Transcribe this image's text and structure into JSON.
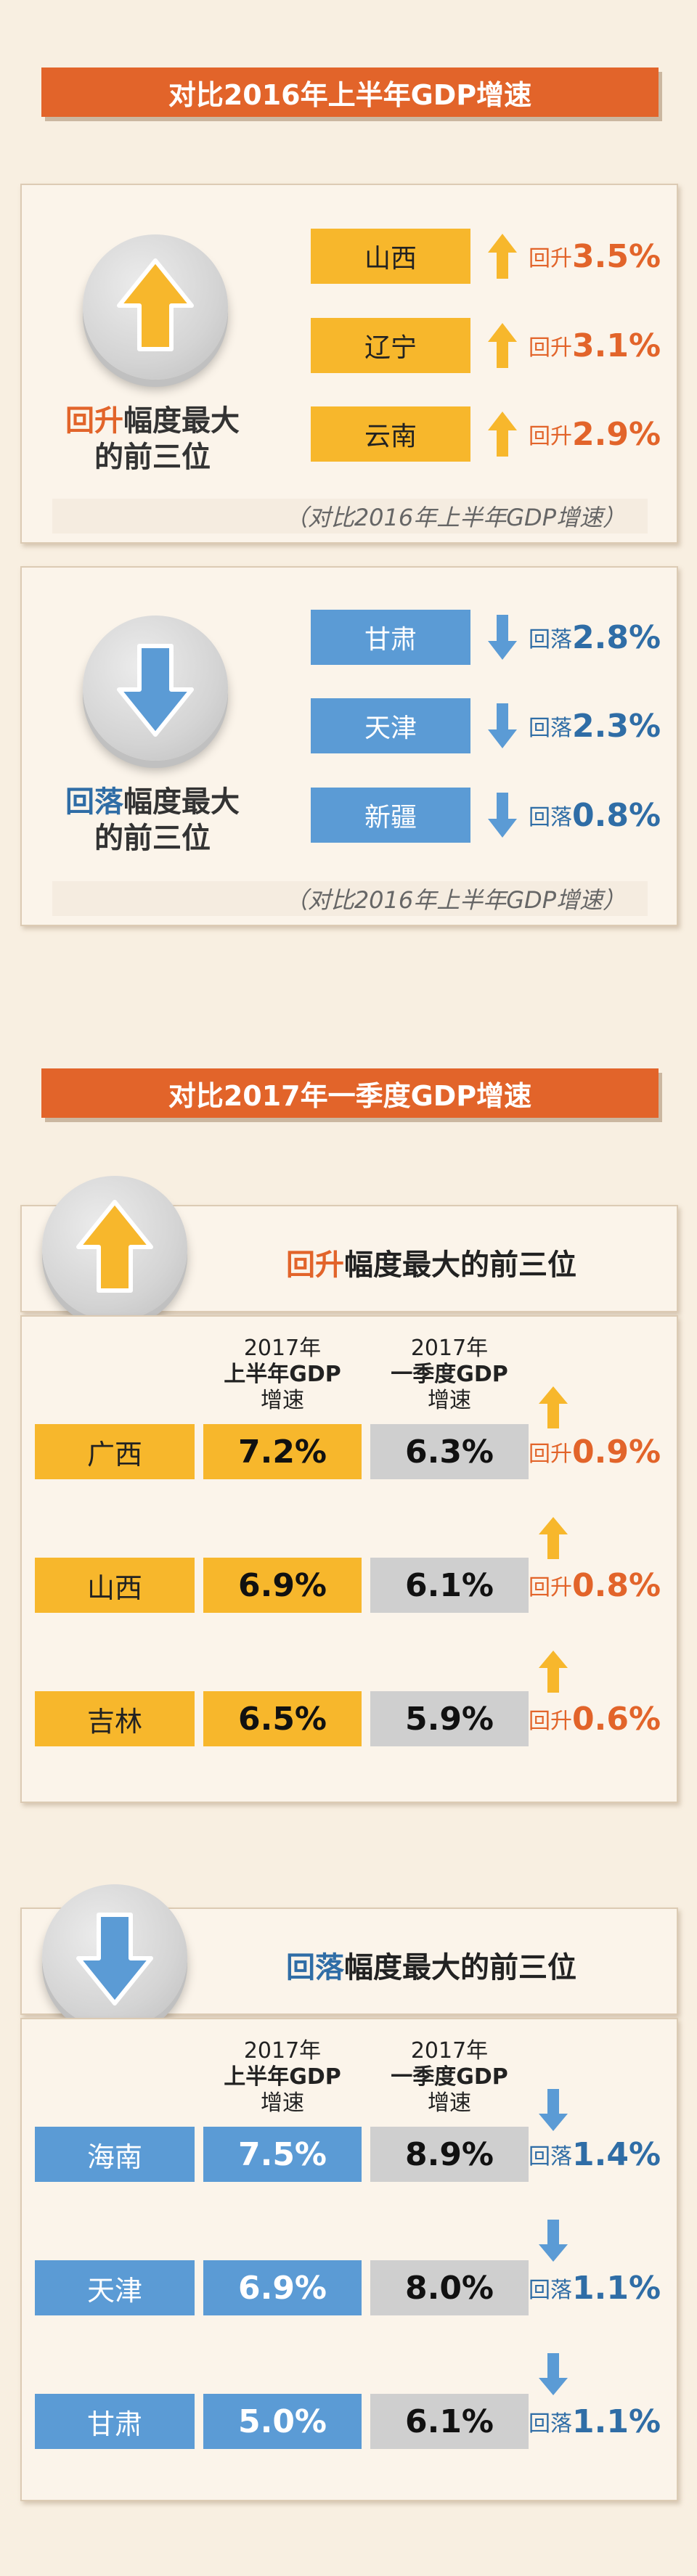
{
  "section1": {
    "title": "对比2016年上半年GDP增速",
    "rise_card": {
      "heading_key": "回升",
      "heading_rest": "幅度最大",
      "heading_line2": "的前三位",
      "items": [
        {
          "region": "山西",
          "label": "回升",
          "value": "3.5%"
        },
        {
          "region": "辽宁",
          "label": "回升",
          "value": "3.1%"
        },
        {
          "region": "云南",
          "label": "回升",
          "value": "2.9%"
        }
      ],
      "note": "（对比2016年上半年GDP增速）"
    },
    "fall_card": {
      "heading_key": "回落",
      "heading_rest": "幅度最大",
      "heading_line2": "的前三位",
      "items": [
        {
          "region": "甘肃",
          "label": "回落",
          "value": "2.8%"
        },
        {
          "region": "天津",
          "label": "回落",
          "value": "2.3%"
        },
        {
          "region": "新疆",
          "label": "回落",
          "value": "0.8%"
        }
      ],
      "note": "（对比2016年上半年GDP增速）"
    }
  },
  "section2": {
    "title": "对比2017年一季度GDP增速",
    "col_header_1": {
      "line1": "2017年",
      "line2": "上半年GDP",
      "line3": "增速"
    },
    "col_header_2": {
      "line1": "2017年",
      "line2": "一季度GDP",
      "line3": "增速"
    },
    "rise": {
      "heading_key": "回升",
      "heading_rest": "幅度最大的前三位",
      "rows": [
        {
          "region": "广西",
          "h1": "7.2%",
          "q1": "6.3%",
          "label": "回升",
          "value": "0.9%"
        },
        {
          "region": "山西",
          "h1": "6.9%",
          "q1": "6.1%",
          "label": "回升",
          "value": "0.8%"
        },
        {
          "region": "吉林",
          "h1": "6.5%",
          "q1": "5.9%",
          "label": "回升",
          "value": "0.6%"
        }
      ]
    },
    "fall": {
      "heading_key": "回落",
      "heading_rest": "幅度最大的前三位",
      "rows": [
        {
          "region": "海南",
          "h1": "7.5%",
          "q1": "8.9%",
          "label": "回落",
          "value": "1.4%"
        },
        {
          "region": "天津",
          "h1": "6.9%",
          "q1": "8.0%",
          "label": "回落",
          "value": "1.1%"
        },
        {
          "region": "甘肃",
          "h1": "5.0%",
          "q1": "6.1%",
          "label": "回落",
          "value": "1.1%"
        }
      ]
    }
  },
  "colors": {
    "orange": "#e2642a",
    "yellow": "#f7b72c",
    "blue": "#5b9bd5",
    "gray": "#cfcfcf"
  }
}
